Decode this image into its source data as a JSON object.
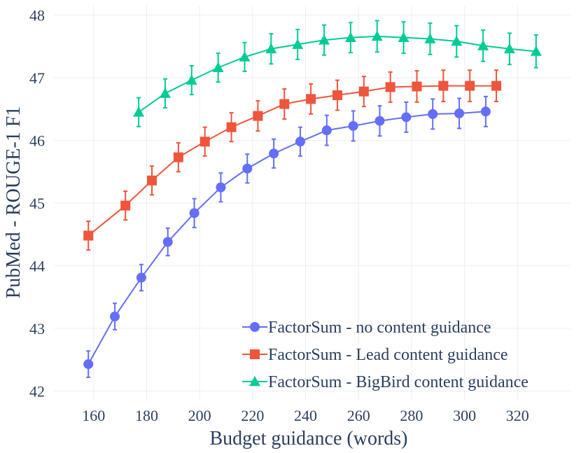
{
  "chart_data": {
    "type": "line",
    "title": "",
    "xlabel": "Budget guidance (words)",
    "ylabel": "PubMed - ROUGE-1 F1",
    "xlim": [
      145,
      340
    ],
    "ylim": [
      41.85,
      48.15
    ],
    "xticks": [
      160,
      180,
      200,
      220,
      240,
      260,
      280,
      300,
      320
    ],
    "yticks": [
      42,
      43,
      44,
      45,
      46,
      47,
      48
    ],
    "grid": true,
    "legend_position": "bottom-right",
    "series": [
      {
        "name": "FactorSum - no content guidance",
        "color": "#636efa",
        "marker": "circle",
        "x": [
          158,
          168,
          178,
          188,
          198,
          208,
          218,
          228,
          238,
          248,
          258,
          268,
          278,
          288,
          298,
          308
        ],
        "y": [
          42.43,
          43.19,
          43.81,
          44.38,
          44.84,
          45.25,
          45.55,
          45.79,
          45.98,
          46.16,
          46.23,
          46.31,
          46.37,
          46.42,
          46.43,
          46.46
        ],
        "error": [
          0.21,
          0.21,
          0.21,
          0.22,
          0.23,
          0.23,
          0.23,
          0.23,
          0.23,
          0.24,
          0.24,
          0.24,
          0.24,
          0.24,
          0.24,
          0.24
        ]
      },
      {
        "name": "FactorSum - Lead content guidance",
        "color": "#ef553b",
        "marker": "square",
        "x": [
          158,
          172,
          182,
          192,
          202,
          212,
          222,
          232,
          242,
          252,
          262,
          272,
          282,
          292,
          302,
          312
        ],
        "y": [
          44.48,
          44.96,
          45.36,
          45.73,
          45.98,
          46.21,
          46.39,
          46.58,
          46.66,
          46.72,
          46.78,
          46.85,
          46.86,
          46.87,
          46.87,
          46.87
        ],
        "error": [
          0.23,
          0.23,
          0.23,
          0.23,
          0.23,
          0.23,
          0.24,
          0.24,
          0.24,
          0.24,
          0.24,
          0.24,
          0.25,
          0.25,
          0.25,
          0.25
        ]
      },
      {
        "name": "FactorSum - BigBird content guidance",
        "color": "#00cc96",
        "marker": "triangle",
        "x": [
          177,
          187,
          197,
          207,
          217,
          227,
          237,
          247,
          257,
          267,
          277,
          287,
          297,
          307,
          317,
          327
        ],
        "y": [
          46.45,
          46.75,
          46.96,
          47.16,
          47.33,
          47.46,
          47.53,
          47.6,
          47.64,
          47.66,
          47.64,
          47.62,
          47.58,
          47.51,
          47.46,
          47.42
        ],
        "error": [
          0.23,
          0.23,
          0.23,
          0.23,
          0.23,
          0.24,
          0.24,
          0.24,
          0.24,
          0.25,
          0.25,
          0.25,
          0.25,
          0.25,
          0.25,
          0.26
        ]
      }
    ]
  }
}
